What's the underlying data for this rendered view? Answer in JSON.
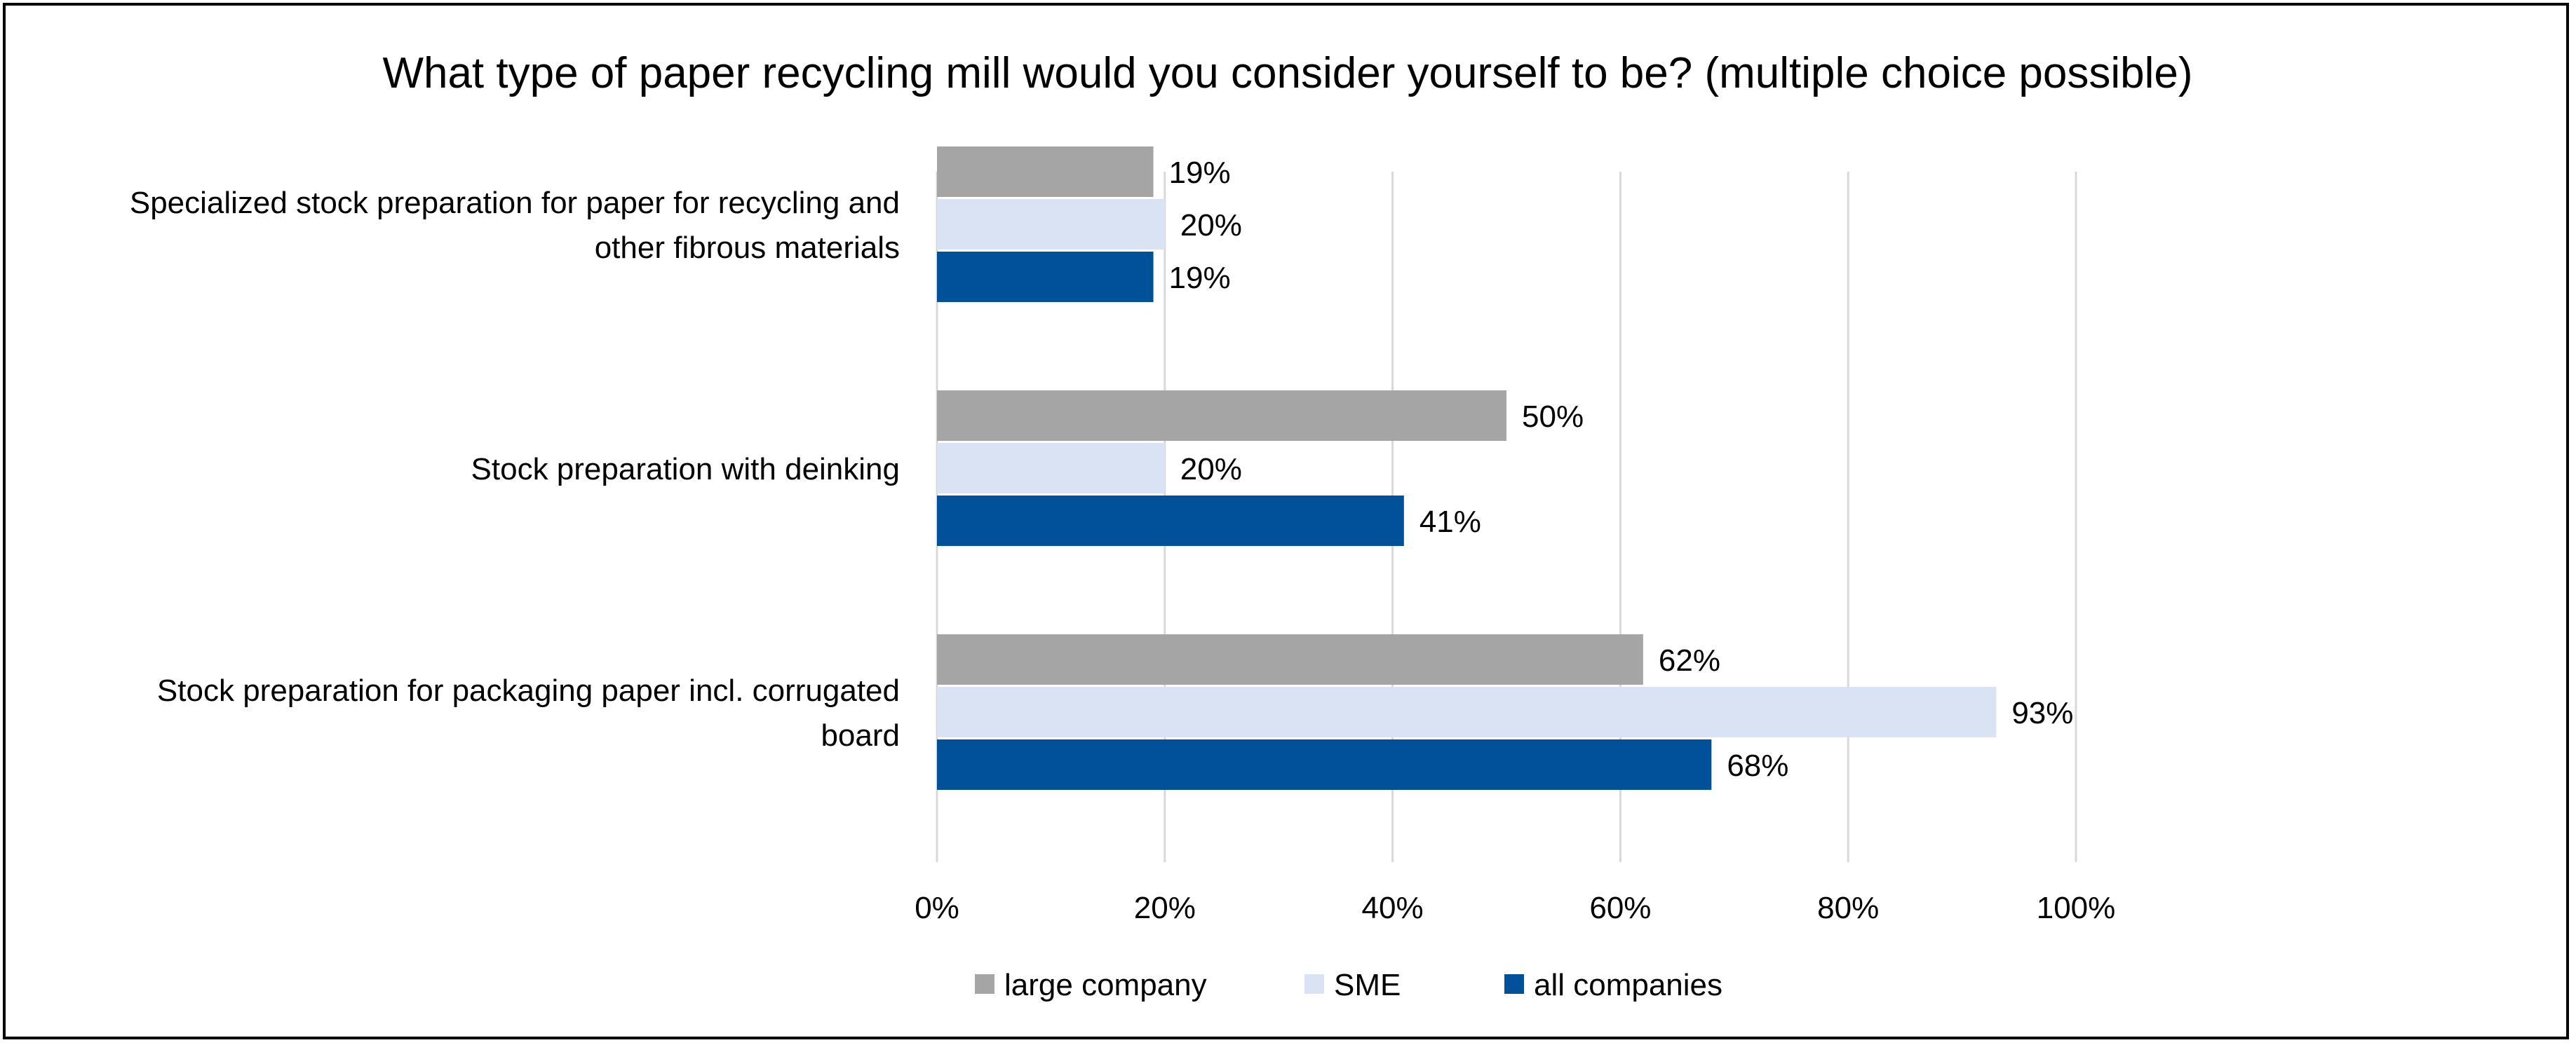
{
  "chart_data": {
    "type": "bar",
    "orientation": "horizontal",
    "title": "What type of paper recycling mill would you consider yourself to be? (multiple choice possible)",
    "categories": [
      [
        "Specialized stock preparation for paper for recycling and",
        "other fibrous materials"
      ],
      [
        "Stock preparation with deinking"
      ],
      [
        "Stock preparation for packaging paper incl. corrugated",
        "board"
      ]
    ],
    "series": [
      {
        "name": "large company",
        "color": "#A5A5A5",
        "values": [
          19,
          50,
          62
        ],
        "labels": [
          "19%",
          "50%",
          "62%"
        ]
      },
      {
        "name": "SME",
        "color": "#DAE3F3",
        "values": [
          20,
          20,
          93
        ],
        "labels": [
          "20%",
          "20%",
          "93%"
        ]
      },
      {
        "name": "all companies",
        "color": "#00519A",
        "values": [
          19,
          41,
          68
        ],
        "labels": [
          "19%",
          "41%",
          "68%"
        ]
      }
    ],
    "xlim": [
      0,
      100
    ],
    "xticks": [
      0,
      20,
      40,
      60,
      80,
      100
    ],
    "xtick_labels": [
      "0%",
      "20%",
      "40%",
      "60%",
      "80%",
      "100%"
    ],
    "grid": true,
    "legend_position": "bottom"
  }
}
